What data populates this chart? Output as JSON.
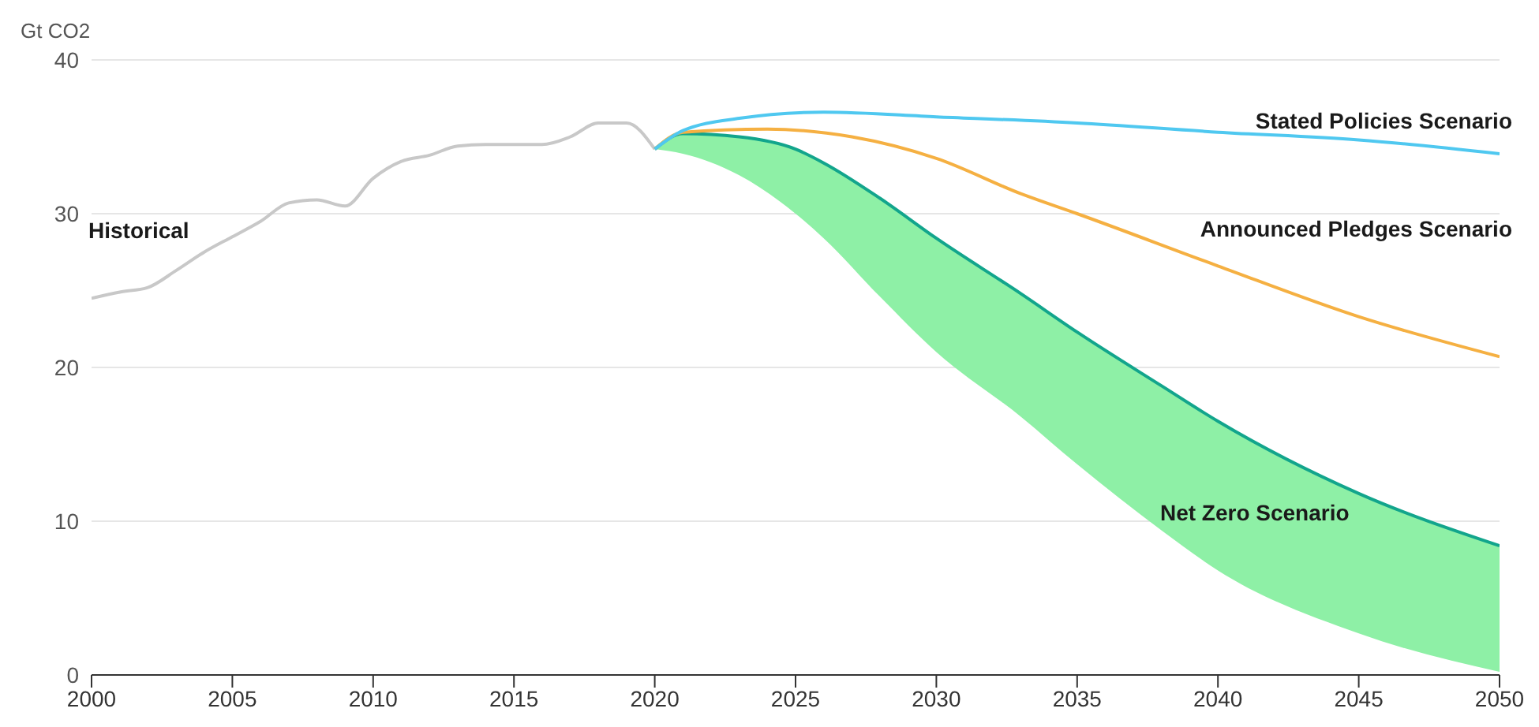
{
  "chart_data": {
    "type": "line",
    "ylabel": "Gt CO2",
    "xlim": [
      2000,
      2050
    ],
    "xticks": [
      2000,
      2005,
      2010,
      2015,
      2020,
      2025,
      2030,
      2035,
      2040,
      2045,
      2050
    ],
    "ylim": [
      0,
      40
    ],
    "yticks": [
      0,
      10,
      20,
      30,
      40
    ],
    "grid": "y",
    "legend": false,
    "marker": "none",
    "line_style": "solid",
    "series": [
      {
        "name": "Historical",
        "color": "#c8c8c8",
        "x": [
          2000,
          2001,
          2002,
          2003,
          2004,
          2005,
          2006,
          2007,
          2008,
          2009,
          2010,
          2011,
          2012,
          2013,
          2014,
          2015,
          2016,
          2017,
          2018,
          2019,
          2020
        ],
        "values": [
          24.5,
          24.9,
          25.2,
          26.3,
          27.5,
          28.5,
          29.5,
          30.7,
          30.9,
          30.5,
          32.3,
          33.4,
          33.8,
          34.4,
          34.5,
          34.5,
          34.5,
          35.0,
          35.9,
          35.9,
          34.2
        ]
      },
      {
        "name": "Net Zero Scenario",
        "color": "#12a58c",
        "x": [
          2020,
          2021,
          2023,
          2025,
          2026,
          2028,
          2030,
          2033,
          2035,
          2038,
          2040,
          2045,
          2050
        ],
        "values": [
          34.2,
          35.2,
          35.0,
          34.2,
          33.3,
          31.0,
          28.4,
          24.8,
          22.3,
          18.8,
          16.5,
          11.8,
          8.4
        ],
        "lower": [
          34.2,
          33.9,
          32.5,
          30.0,
          28.4,
          24.6,
          21.0,
          16.8,
          13.7,
          9.4,
          6.8,
          2.7,
          0.2
        ],
        "upper": [
          34.2,
          35.2,
          35.0,
          34.2,
          33.3,
          31.0,
          28.4,
          24.8,
          22.3,
          18.8,
          16.5,
          11.8,
          8.4
        ]
      },
      {
        "name": "Announced Pledges Scenario",
        "color": "#f5b042",
        "x": [
          2020,
          2021,
          2024,
          2027,
          2030,
          2033,
          2035,
          2040,
          2045,
          2050
        ],
        "values": [
          34.2,
          35.3,
          35.5,
          35.0,
          33.6,
          31.3,
          30.0,
          26.6,
          23.3,
          20.7
        ]
      },
      {
        "name": "Stated Policies Scenario",
        "color": "#4fc8f0",
        "x": [
          2020,
          2021,
          2023,
          2026,
          2030,
          2035,
          2040,
          2045,
          2050
        ],
        "values": [
          34.2,
          35.4,
          36.2,
          36.6,
          36.3,
          35.9,
          35.3,
          34.8,
          33.9
        ]
      }
    ]
  }
}
